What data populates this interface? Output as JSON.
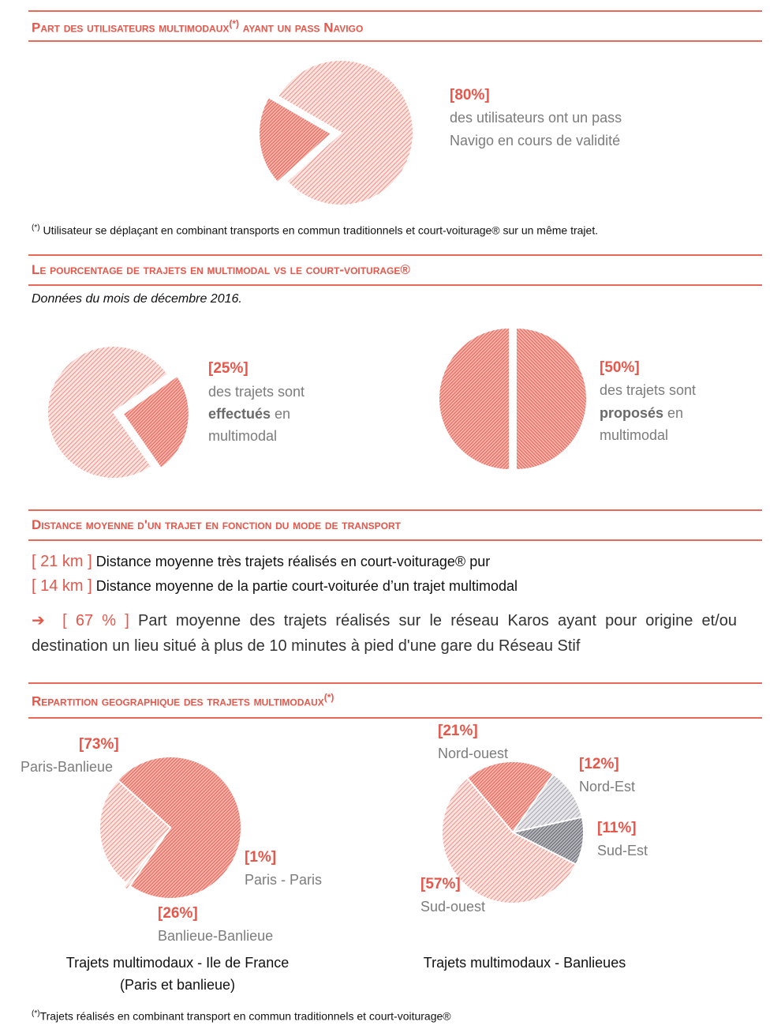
{
  "section1": {
    "title": "Part des utilisateurs multimodaux",
    "title_sup": "(*)",
    "title_end": "ayant un pass Navigo",
    "value_label": "[80%]",
    "desc_line1": "des utilisateurs ont un pass",
    "desc_line2": "Navigo en cours de validité",
    "footnote_mark": "(*)",
    "footnote": "Utilisateur se déplaçant en combinant transports en commun traditionnels et court-voiturage® sur un même trajet."
  },
  "section2": {
    "title": "Le pourcentage de trajets en multimodal vs le court-voiturage®",
    "subtitle": "Données du mois de décembre 2016.",
    "left": {
      "value_label": "[25%]",
      "line1": "des trajets sont",
      "bold": "effectués",
      "after_bold": " en",
      "line3": "multimodal"
    },
    "right": {
      "value_label": "[50%]",
      "line1": "des trajets sont",
      "bold": "proposés",
      "after_bold": " en",
      "line3": "multimodal"
    }
  },
  "section3": {
    "title": "Distance moyenne d'un trajet en fonction du mode de transport",
    "stat1_value": "[ 21 km ]",
    "stat1_text": "Distance moyenne très trajets réalisés en court-voiturage® pur",
    "stat2_value": "[ 14 km ]",
    "stat2_text": "Distance moyenne de la partie court-voiturée d’un trajet multimodal",
    "arrow": "➔",
    "stat3_value": "[ 67 % ]",
    "stat3_text": "Part moyenne des trajets réalisés sur le réseau Karos ayant pour origine et/ou destination un lieu situé à plus de 10 minutes à pied d'une gare du Réseau Stif"
  },
  "section4": {
    "title": "Repartition geographique des trajets multimodaux",
    "title_sup": "(*)",
    "caption_left_line1": "Trajets multimodaux - Ile de France",
    "caption_left_line2": "(Paris et banlieue)",
    "caption_right": "Trajets multimodaux - Banlieues",
    "footnote_mark": "(*)",
    "footnote": "Trajets réalisés en combinant transport en commun traditionnels et court-voiturage®"
  },
  "colors": {
    "accent": "#e8564a",
    "grey_text": "#7c7c7c",
    "dark_slice": "#6b6b73",
    "light_slice": "#8a8a92"
  },
  "chart_data": [
    {
      "type": "pie",
      "title": "",
      "slices": [
        {
          "label": "",
          "value": 80
        },
        {
          "label": "",
          "value": 20
        }
      ]
    },
    {
      "type": "pie",
      "title": "",
      "slices": [
        {
          "label": "",
          "value": 75
        },
        {
          "label": "",
          "value": 25
        }
      ]
    },
    {
      "type": "pie",
      "title": "",
      "slices": [
        {
          "label": "",
          "value": 50
        },
        {
          "label": "",
          "value": 50
        }
      ]
    },
    {
      "type": "pie",
      "title": "Trajets multimodaux - Ile de France (Paris et banlieue)",
      "slices": [
        {
          "label": "Paris-Banlieue",
          "value_label": "[73%]",
          "value": 73
        },
        {
          "label": "Paris - Paris",
          "value_label": "[1%]",
          "value": 1
        },
        {
          "label": "Banlieue-Banlieue",
          "value_label": "[26%]",
          "value": 26
        }
      ]
    },
    {
      "type": "pie",
      "title": "Trajets multimodaux - Banlieues",
      "slices": [
        {
          "label": "Nord-ouest",
          "value_label": "[21%]",
          "value": 21
        },
        {
          "label": "Nord-Est",
          "value_label": "[12%]",
          "value": 12
        },
        {
          "label": "Sud-Est",
          "value_label": "[11%]",
          "value": 11
        },
        {
          "label": "Sud-ouest",
          "value_label": "[57%]",
          "value": 57
        }
      ]
    }
  ]
}
